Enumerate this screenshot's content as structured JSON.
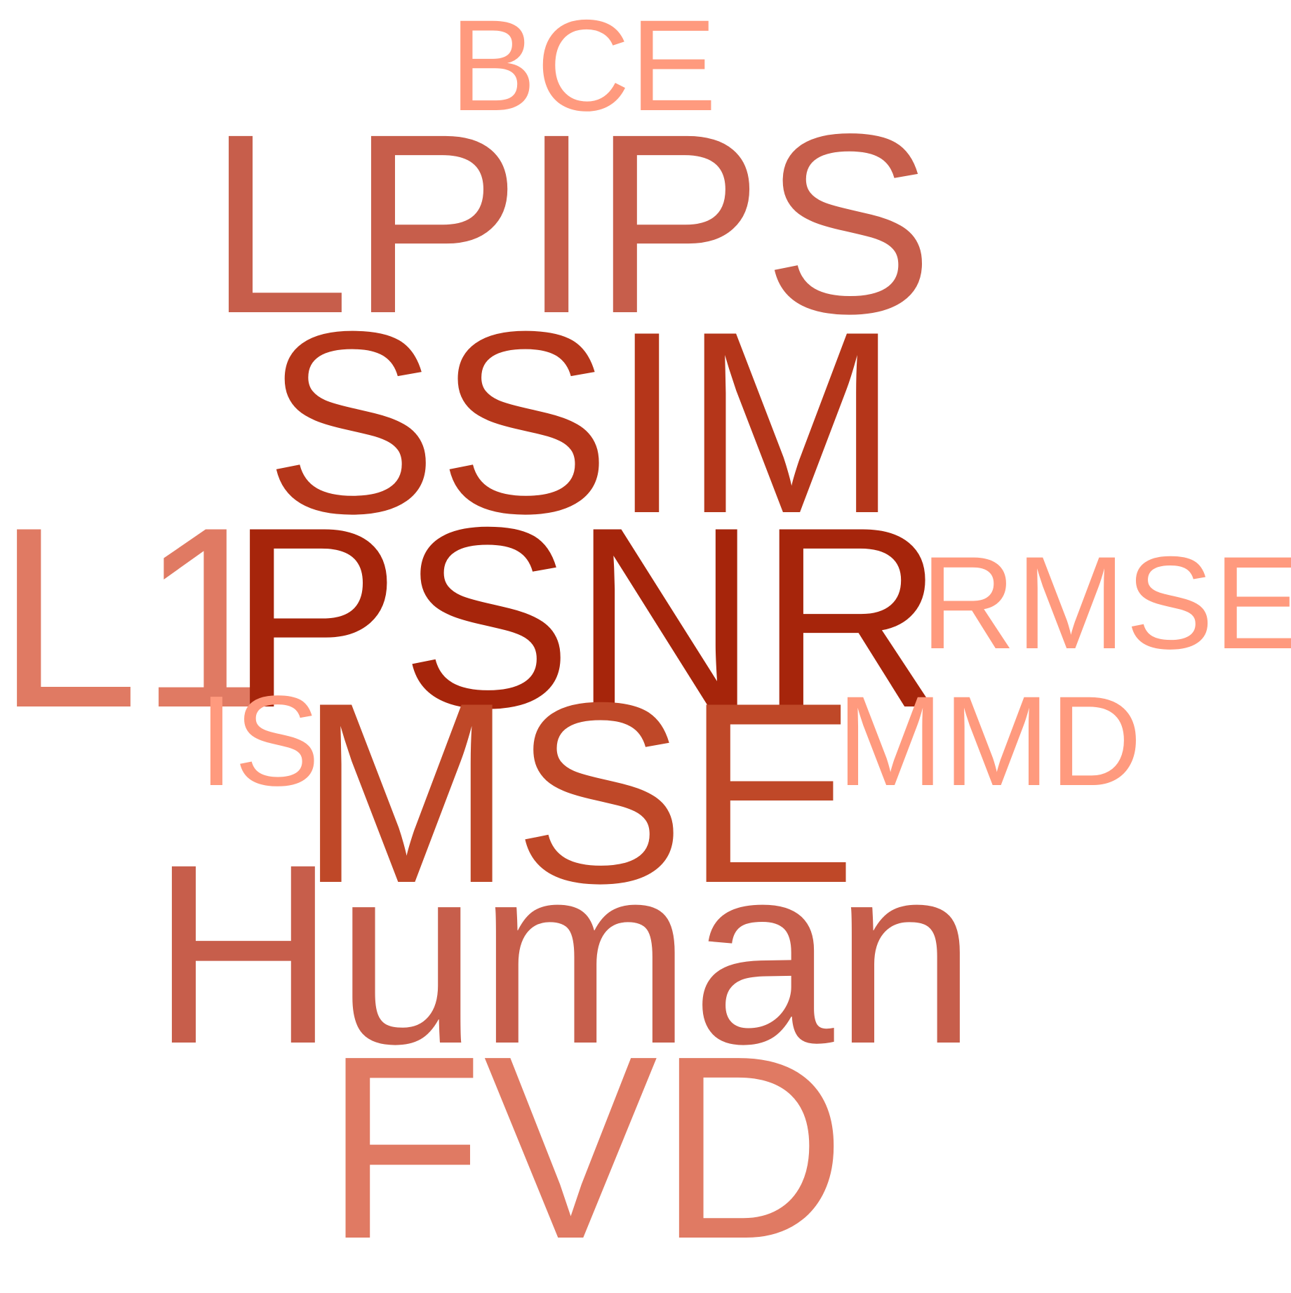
{
  "colors": {
    "background": "#ffffff",
    "darkest": "#a6250b",
    "dark": "#b5361a",
    "mid_dark": "#bf4828",
    "mid": "#c75e4b",
    "mid_light": "#e07a63",
    "light": "#ff9a7e"
  },
  "words": [
    {
      "text": "BCE",
      "weight": 1,
      "color": "#ff9a7e"
    },
    {
      "text": "LPIPS",
      "weight": 3,
      "color": "#c75e4b"
    },
    {
      "text": "SSIM",
      "weight": 4,
      "color": "#b5361a"
    },
    {
      "text": "L1",
      "weight": 2,
      "color": "#e07a63"
    },
    {
      "text": "PSNR",
      "weight": 5,
      "color": "#a6250b"
    },
    {
      "text": "RMSE",
      "weight": 1,
      "color": "#ff9a7e"
    },
    {
      "text": "IS",
      "weight": 1,
      "color": "#ff9a7e"
    },
    {
      "text": "MSE",
      "weight": 4,
      "color": "#bf4828"
    },
    {
      "text": "MMD",
      "weight": 1,
      "color": "#ff9a7e"
    },
    {
      "text": "Human",
      "weight": 3,
      "color": "#c75e4b"
    },
    {
      "text": "FVD",
      "weight": 2,
      "color": "#e07a63"
    }
  ]
}
